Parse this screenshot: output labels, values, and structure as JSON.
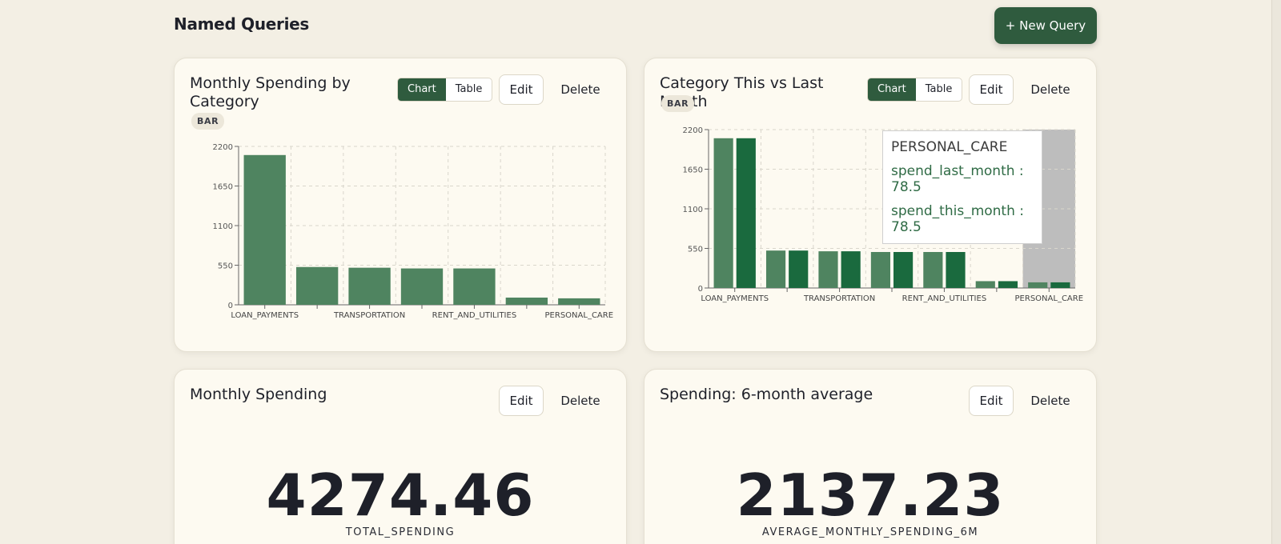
{
  "header": {
    "title": "Named Queries",
    "new_query_label": "+ New Query"
  },
  "common": {
    "chart_label": "Chart",
    "table_label": "Table",
    "edit_label": "Edit",
    "delete_label": "Delete"
  },
  "cards": [
    {
      "title": "Monthly Spending by Category",
      "badge": "BAR",
      "chart_data": {
        "type": "bar",
        "categories": [
          "LOAN_PAYMENTS",
          "",
          "TRANSPORTATION",
          "",
          "RENT_AND_UTILITIES",
          "",
          "PERSONAL_CARE"
        ],
        "series": [
          {
            "values": [
              2080,
              525,
              515,
              505,
              505,
              100,
              90
            ]
          }
        ],
        "xlabel": "",
        "ylabel": "",
        "ylim": [
          0,
          2200
        ],
        "yticks": [
          0,
          550,
          1100,
          1650,
          2200
        ],
        "grid": true,
        "colors": [
          "#4f8460"
        ]
      }
    },
    {
      "title": "Category This vs Last Month",
      "badge": "BAR",
      "chart_data": {
        "type": "bar",
        "categories": [
          "LOAN_PAYMENTS",
          "",
          "TRANSPORTATION",
          "",
          "RENT_AND_UTILITIES",
          "",
          "PERSONAL_CARE"
        ],
        "series": [
          {
            "name": "spend_last_month",
            "values": [
              2080,
              520,
              510,
              500,
              500,
              95,
              78.5
            ]
          },
          {
            "name": "spend_this_month",
            "values": [
              2080,
              520,
              510,
              500,
              500,
              95,
              78.5
            ]
          }
        ],
        "xlabel": "",
        "ylabel": "",
        "ylim": [
          0,
          2200
        ],
        "yticks": [
          0,
          550,
          1100,
          1650,
          2200
        ],
        "grid": true,
        "highlight_index": 6,
        "colors": [
          "#4f8460",
          "#1a6a3e"
        ]
      },
      "tooltip": {
        "category": "PERSONAL_CARE",
        "line1": "spend_last_month : 78.5",
        "line2": "spend_this_month : 78.5"
      }
    },
    {
      "title": "Monthly Spending",
      "value": "4274.46",
      "label": "TOTAL_SPENDING"
    },
    {
      "title": "Spending: 6-month average",
      "value": "2137.23",
      "label": "AVERAGE_MONTHLY_SPENDING_6M"
    }
  ]
}
